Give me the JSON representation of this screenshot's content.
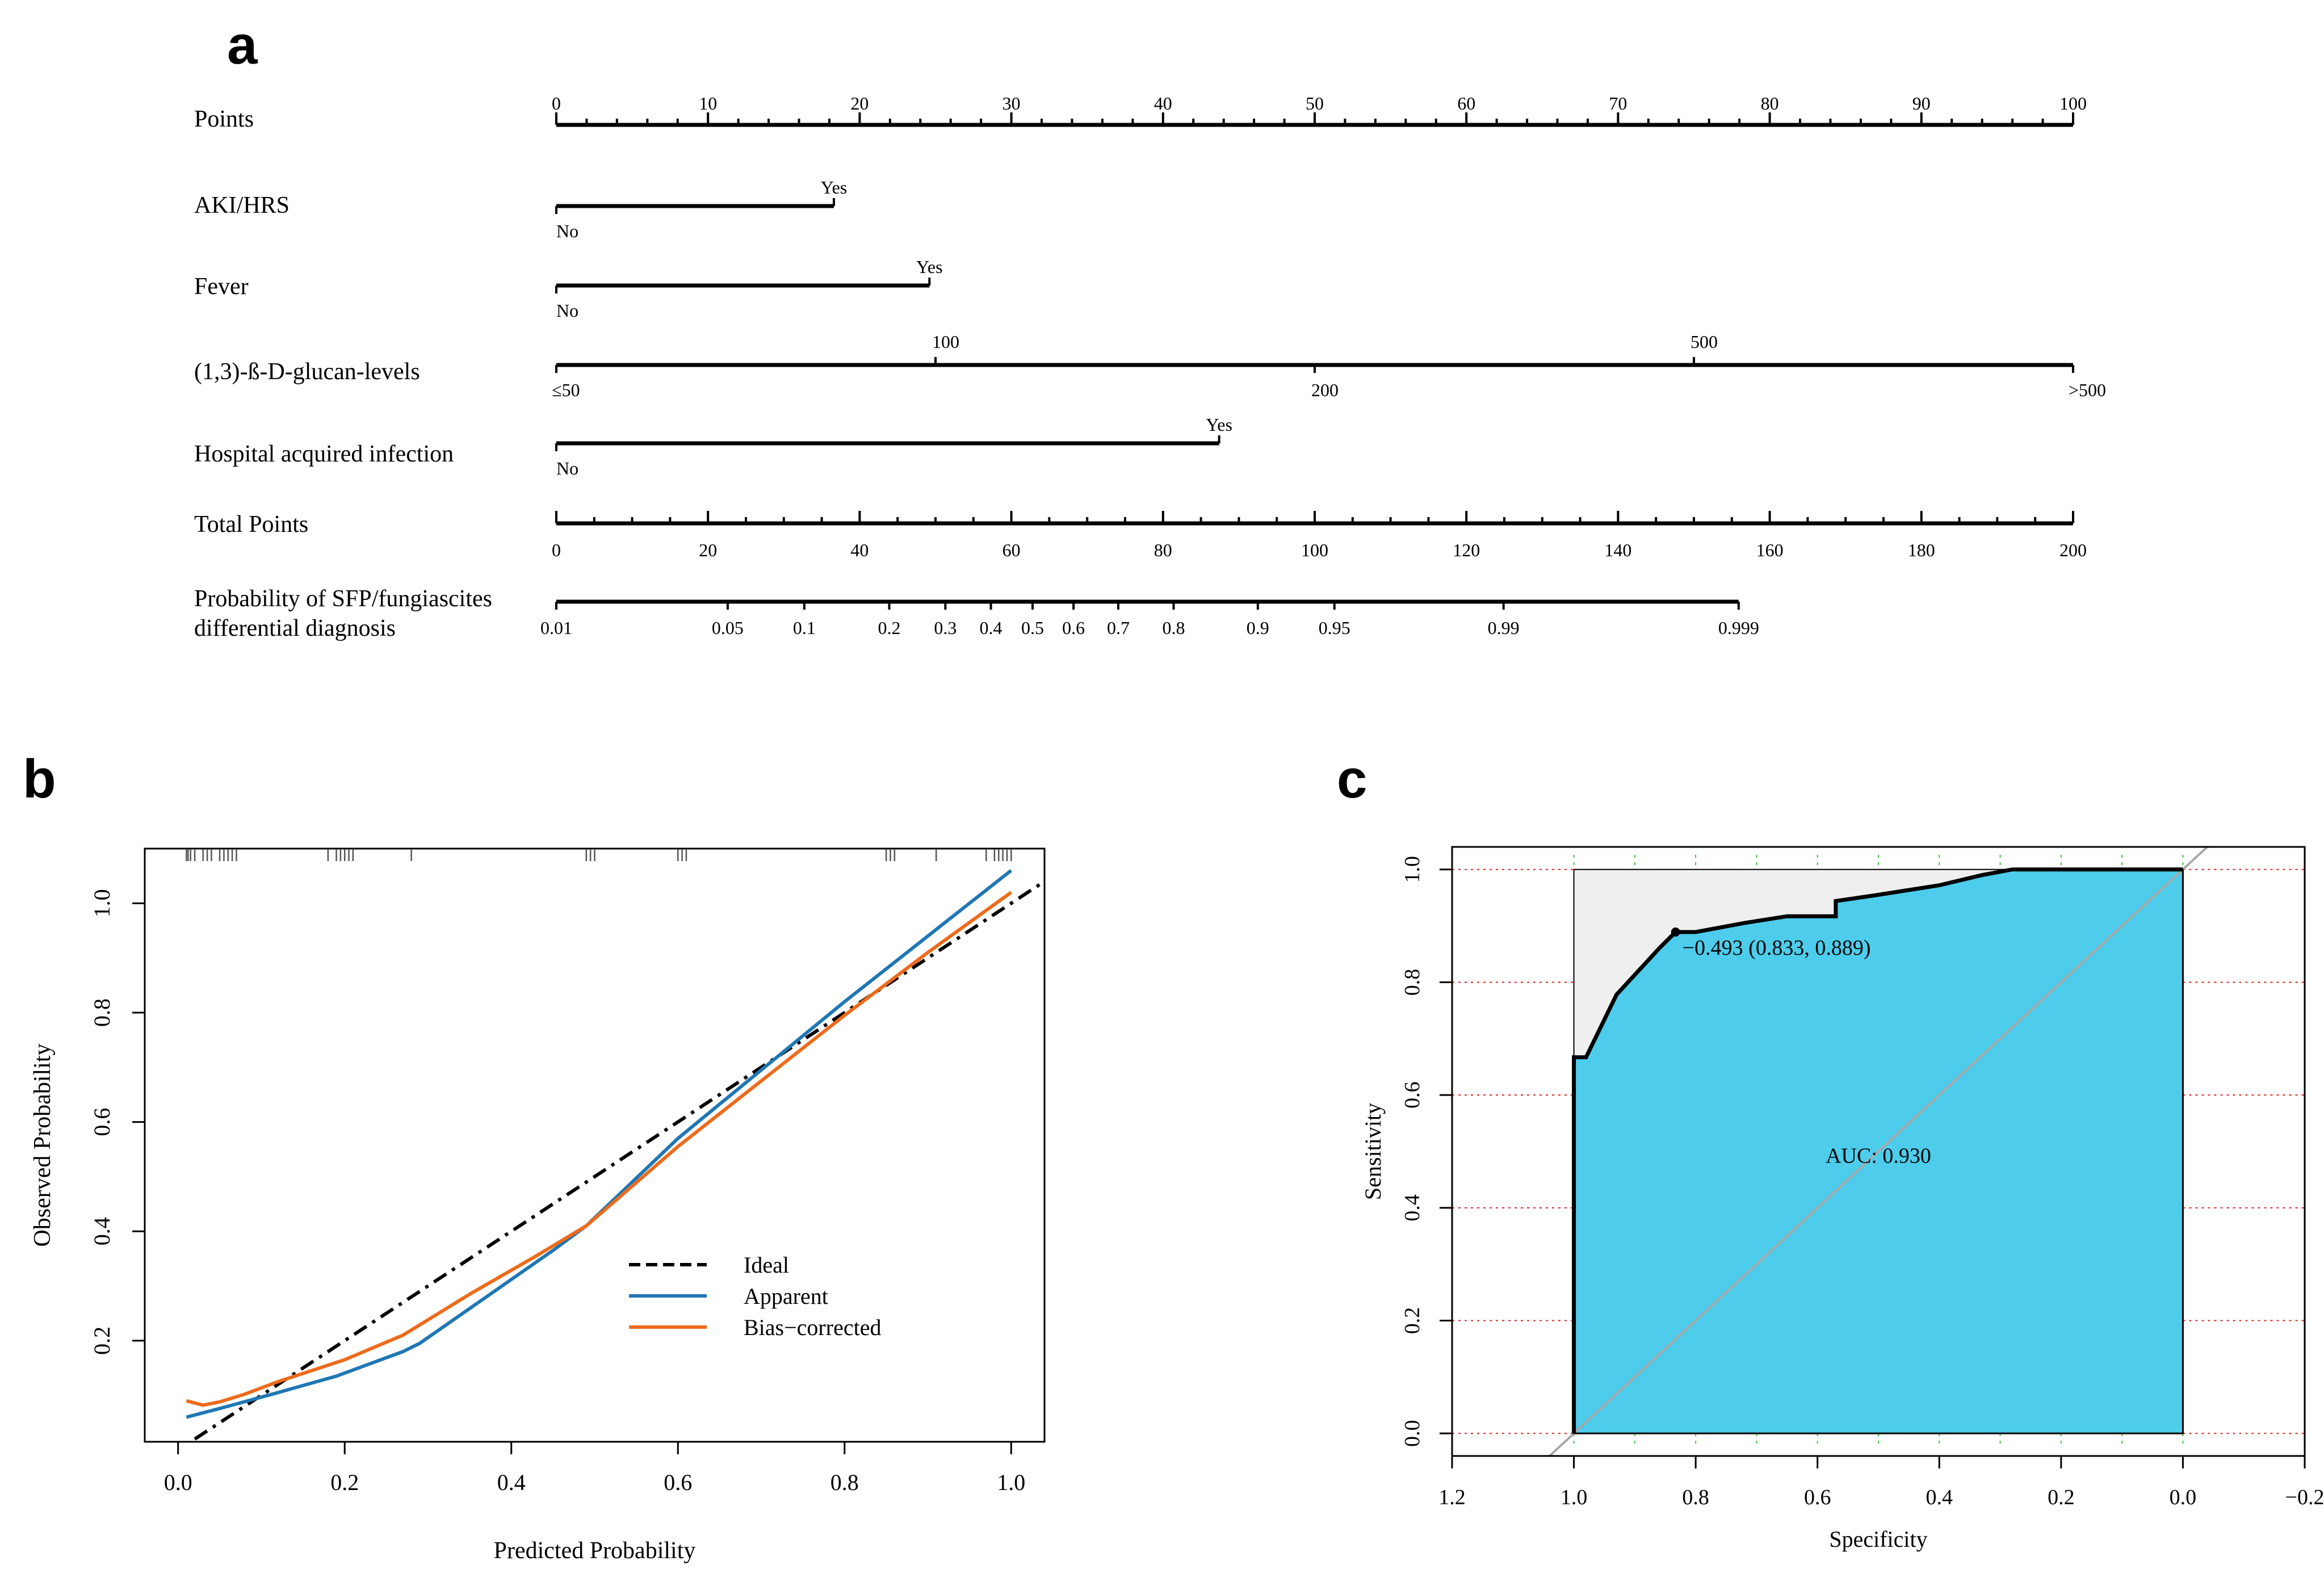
{
  "panel_labels": {
    "a": "a",
    "b": "b",
    "c": "c"
  },
  "chart_data": [
    {
      "type": "nomogram",
      "panel": "a",
      "axes": [
        {
          "label": "Points",
          "ticks": [
            {
              "v": 0,
              "t": "0"
            },
            {
              "v": 10,
              "t": "10"
            },
            {
              "v": 20,
              "t": "20"
            },
            {
              "v": 30,
              "t": "30"
            },
            {
              "v": 40,
              "t": "40"
            },
            {
              "v": 50,
              "t": "50"
            },
            {
              "v": 60,
              "t": "60"
            },
            {
              "v": 70,
              "t": "70"
            },
            {
              "v": 80,
              "t": "80"
            },
            {
              "v": 90,
              "t": "90"
            },
            {
              "v": 100,
              "t": "100"
            }
          ]
        },
        {
          "label": "AKI/HRS",
          "levels": [
            {
              "value": "No",
              "points": 0
            },
            {
              "value": "Yes",
              "points": 18.3
            }
          ]
        },
        {
          "label": "Fever",
          "levels": [
            {
              "value": "No",
              "points": 0
            },
            {
              "value": "Yes",
              "points": 24.6
            }
          ]
        },
        {
          "label": "(1,3)-ß-D-glucan-levels",
          "levels": [
            {
              "value": "≤50",
              "points": 0
            },
            {
              "value": "100",
              "points": 25
            },
            {
              "value": "200",
              "points": 50
            },
            {
              "value": "500",
              "points": 75
            },
            {
              "value": ">500",
              "points": 100
            }
          ]
        },
        {
          "label": "Hospital acquired infection",
          "levels": [
            {
              "value": "No",
              "points": 0
            },
            {
              "value": "Yes",
              "points": 43.7
            }
          ]
        },
        {
          "label": "Total Points",
          "range": [
            0,
            200
          ],
          "ticks": [
            {
              "v": 0,
              "t": "0"
            },
            {
              "v": 20,
              "t": "20"
            },
            {
              "v": 40,
              "t": "40"
            },
            {
              "v": 60,
              "t": "60"
            },
            {
              "v": 80,
              "t": "80"
            },
            {
              "v": 100,
              "t": "100"
            },
            {
              "v": 120,
              "t": "120"
            },
            {
              "v": 140,
              "t": "140"
            },
            {
              "v": 160,
              "t": "160"
            },
            {
              "v": 180,
              "t": "180"
            },
            {
              "v": 200,
              "t": "200"
            }
          ]
        },
        {
          "label_line1": "Probability of SFP/fungiascites",
          "label_line2": "differential diagnosis",
          "ticks": [
            {
              "total": 0,
              "t": "0.01"
            },
            {
              "total": 22.6,
              "t": "0.05"
            },
            {
              "total": 32.7,
              "t": "0.1"
            },
            {
              "total": 43.9,
              "t": "0.2"
            },
            {
              "total": 51.3,
              "t": "0.3"
            },
            {
              "total": 57.3,
              "t": "0.4"
            },
            {
              "total": 62.8,
              "t": "0.5"
            },
            {
              "total": 68.2,
              "t": "0.6"
            },
            {
              "total": 74.1,
              "t": "0.7"
            },
            {
              "total": 81.4,
              "t": "0.8"
            },
            {
              "total": 92.5,
              "t": "0.9"
            },
            {
              "total": 102.6,
              "t": "0.95"
            },
            {
              "total": 124.9,
              "t": "0.99"
            },
            {
              "total": 155.9,
              "t": "0.999"
            }
          ]
        }
      ]
    },
    {
      "type": "line",
      "panel": "b",
      "xlabel": "Predicted Probability",
      "ylabel": "Observed Probability",
      "xlim": [
        -0.04,
        1.04
      ],
      "ylim": [
        0.015,
        1.1
      ],
      "xticks": [
        {
          "v": 0.0,
          "t": "0.0"
        },
        {
          "v": 0.2,
          "t": "0.2"
        },
        {
          "v": 0.4,
          "t": "0.4"
        },
        {
          "v": 0.6,
          "t": "0.6"
        },
        {
          "v": 0.8,
          "t": "0.8"
        },
        {
          "v": 1.0,
          "t": "1.0"
        }
      ],
      "yticks": [
        {
          "v": 0.2,
          "t": "0.2"
        },
        {
          "v": 0.4,
          "t": "0.4"
        },
        {
          "v": 0.6,
          "t": "0.6"
        },
        {
          "v": 0.8,
          "t": "0.8"
        },
        {
          "v": 1.0,
          "t": "1.0"
        }
      ],
      "legend_position": "center-right",
      "series": [
        {
          "name": "Ideal",
          "style": "dashed",
          "color": "#000000",
          "x": [
            0.02,
            1.04
          ],
          "y": [
            0.02,
            1.04
          ]
        },
        {
          "name": "Apparent",
          "style": "solid",
          "color": "#1f77b4",
          "x": [
            0.01,
            0.06,
            0.12,
            0.19,
            0.27,
            0.29,
            0.37,
            0.45,
            0.49,
            0.6,
            0.7,
            0.8,
            0.9,
            1.0
          ],
          "y": [
            0.06,
            0.08,
            0.105,
            0.135,
            0.18,
            0.195,
            0.28,
            0.365,
            0.41,
            0.57,
            0.695,
            0.82,
            0.94,
            1.06
          ]
        },
        {
          "name": "Bias−corrected",
          "style": "solid",
          "color": "#ee6a1a",
          "x": [
            0.01,
            0.03,
            0.05,
            0.08,
            0.12,
            0.2,
            0.27,
            0.35,
            0.43,
            0.49,
            0.6,
            0.7,
            0.8,
            0.9,
            1.0
          ],
          "y": [
            0.09,
            0.082,
            0.088,
            0.102,
            0.125,
            0.165,
            0.21,
            0.285,
            0.355,
            0.41,
            0.555,
            0.675,
            0.795,
            0.91,
            1.02
          ]
        }
      ],
      "rug_x": [
        0.01,
        0.012,
        0.015,
        0.02,
        0.03,
        0.035,
        0.04,
        0.05,
        0.055,
        0.06,
        0.065,
        0.07,
        0.18,
        0.19,
        0.195,
        0.2,
        0.205,
        0.21,
        0.28,
        0.49,
        0.495,
        0.5,
        0.6,
        0.605,
        0.61,
        0.85,
        0.855,
        0.86,
        0.91,
        0.97,
        0.98,
        0.985,
        0.99,
        0.995,
        1.0
      ]
    },
    {
      "type": "area",
      "panel": "c",
      "xlabel": "Specificity",
      "ylabel": "Sensitivity",
      "xlim": [
        1.2,
        -0.2
      ],
      "ylim": [
        -0.04,
        1.04
      ],
      "xticks": [
        {
          "v": 1.2,
          "t": "1.2"
        },
        {
          "v": 1.0,
          "t": "1.0"
        },
        {
          "v": 0.8,
          "t": "0.8"
        },
        {
          "v": 0.6,
          "t": "0.6"
        },
        {
          "v": 0.4,
          "t": "0.4"
        },
        {
          "v": 0.2,
          "t": "0.2"
        },
        {
          "v": 0.0,
          "t": "0.0"
        },
        {
          "v": -0.2,
          "t": "−0.2"
        }
      ],
      "yticks": [
        {
          "v": 0.0,
          "t": "0.0"
        },
        {
          "v": 0.2,
          "t": "0.2"
        },
        {
          "v": 0.4,
          "t": "0.4"
        },
        {
          "v": 0.6,
          "t": "0.6"
        },
        {
          "v": 0.8,
          "t": "0.8"
        },
        {
          "v": 1.0,
          "t": "1.0"
        }
      ],
      "grid": true,
      "auc_label": "AUC: 0.930",
      "best_threshold": {
        "specificity": 0.833,
        "sensitivity": 0.889,
        "label": "−0.493 (0.833, 0.889)"
      },
      "series": [
        {
          "name": "ROC",
          "fill_color": "#4dcdeb",
          "specificity": [
            1.0,
            1.0,
            0.98,
            0.93,
            0.86,
            0.833,
            0.8,
            0.72,
            0.65,
            0.57,
            0.57,
            0.5,
            0.4,
            0.33,
            0.28,
            0.0
          ],
          "sensitivity": [
            0.0,
            0.667,
            0.667,
            0.778,
            0.86,
            0.889,
            0.889,
            0.905,
            0.917,
            0.917,
            0.944,
            0.955,
            0.972,
            0.99,
            1.0,
            1.0
          ]
        }
      ]
    }
  ]
}
